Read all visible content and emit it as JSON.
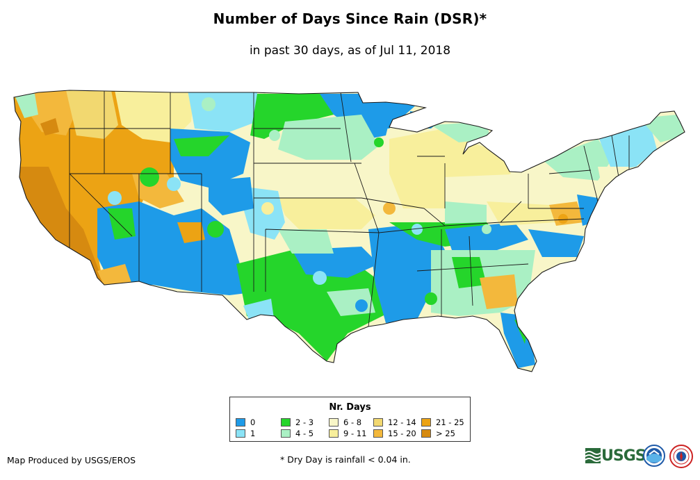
{
  "title": "Number of Days Since Rain (DSR)*",
  "subtitle": "in past 30 days, as of Jul 11, 2018",
  "legend": {
    "title": "Nr. Days",
    "items": [
      {
        "label": "0",
        "color": "#1e9be8"
      },
      {
        "label": "1",
        "color": "#8be3f6"
      },
      {
        "label": "2 - 3",
        "color": "#25d52b"
      },
      {
        "label": "4 - 5",
        "color": "#aaf0c4"
      },
      {
        "label": "6 - 8",
        "color": "#f8f6c8"
      },
      {
        "label": "9 - 11",
        "color": "#f8ef9c"
      },
      {
        "label": "12 - 14",
        "color": "#f2d870"
      },
      {
        "label": "15 - 20",
        "color": "#f3b83c"
      },
      {
        "label": "21 - 25",
        "color": "#eca314"
      },
      {
        "label": "> 25",
        "color": "#d68a10"
      }
    ]
  },
  "credit": "Map Produced by USGS/EROS",
  "note": "* Dry Day is rainfall < 0.04 in.",
  "logos": {
    "usgs": "USGS",
    "noaa_icon": "noaa-seal-icon",
    "nws_icon": "nws-seal-icon"
  }
}
